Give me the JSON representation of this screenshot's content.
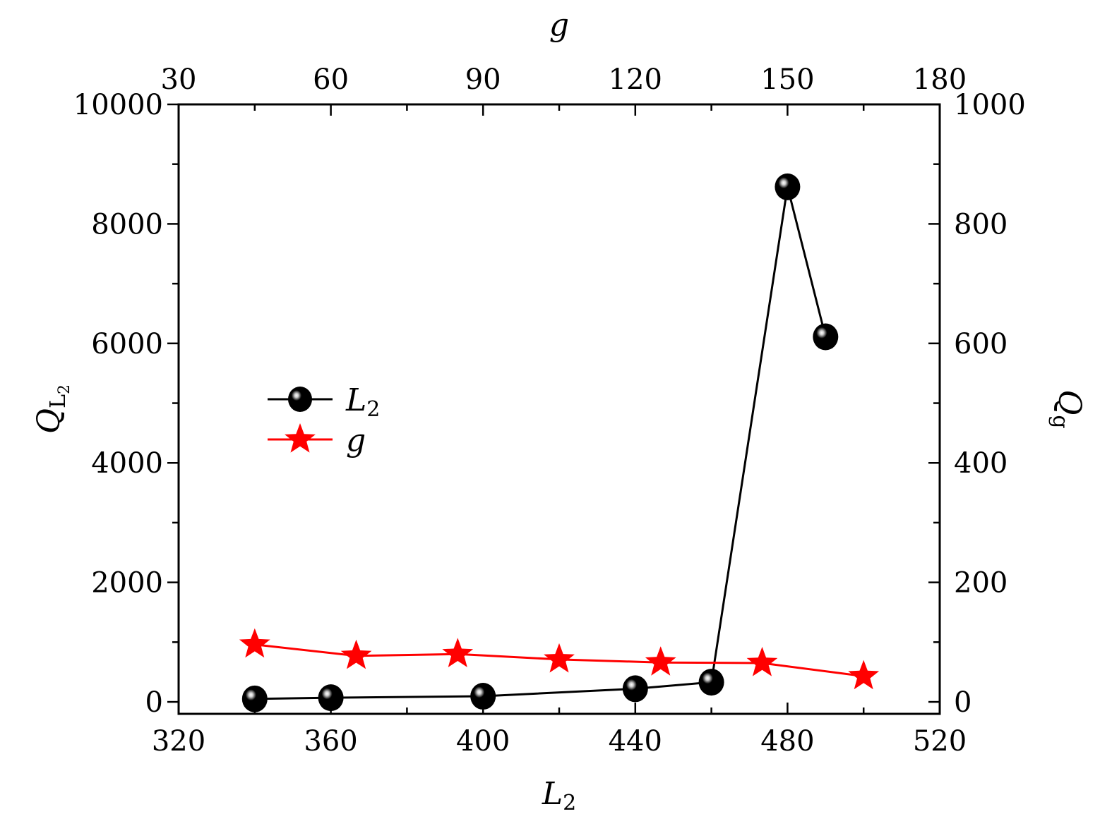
{
  "chart_data": {
    "type": "line",
    "xlabel": "L",
    "xlabel_sub": "2",
    "x2label": "g",
    "ylabel": "Q",
    "ylabel_sub": "L2",
    "ylabel_sub_main": "L",
    "ylabel_sub_sub": "2",
    "y2label": "Q",
    "y2label_sub": "g",
    "xlim": [
      320,
      520
    ],
    "x2lim": [
      30,
      180
    ],
    "ylim": [
      -200,
      10000
    ],
    "y2lim": [
      -20,
      1000
    ],
    "xticks": [
      "320",
      "360",
      "400",
      "440",
      "480",
      "520"
    ],
    "x2ticks": [
      "30",
      "60",
      "90",
      "120",
      "150",
      "180"
    ],
    "yticks": [
      "0",
      "2000",
      "4000",
      "6000",
      "8000",
      "10000"
    ],
    "y2ticks": [
      "0",
      "200",
      "400",
      "600",
      "800",
      "1000"
    ],
    "legend_position": "center-left",
    "grid": false,
    "series": [
      {
        "name": "L",
        "name_sub": "2",
        "axis": "bottom-left",
        "color": "#000000",
        "marker": "sphere",
        "x": [
          340,
          360,
          400,
          440,
          460,
          480,
          490
        ],
        "y": [
          50,
          70,
          95,
          220,
          330,
          8620,
          6110
        ]
      },
      {
        "name": "g",
        "axis": "top-right",
        "color": "#ff0000",
        "marker": "star",
        "x": [
          45,
          65,
          85,
          105,
          125,
          145,
          165
        ],
        "y": [
          96,
          77,
          80,
          71,
          66,
          65,
          43
        ]
      }
    ]
  }
}
